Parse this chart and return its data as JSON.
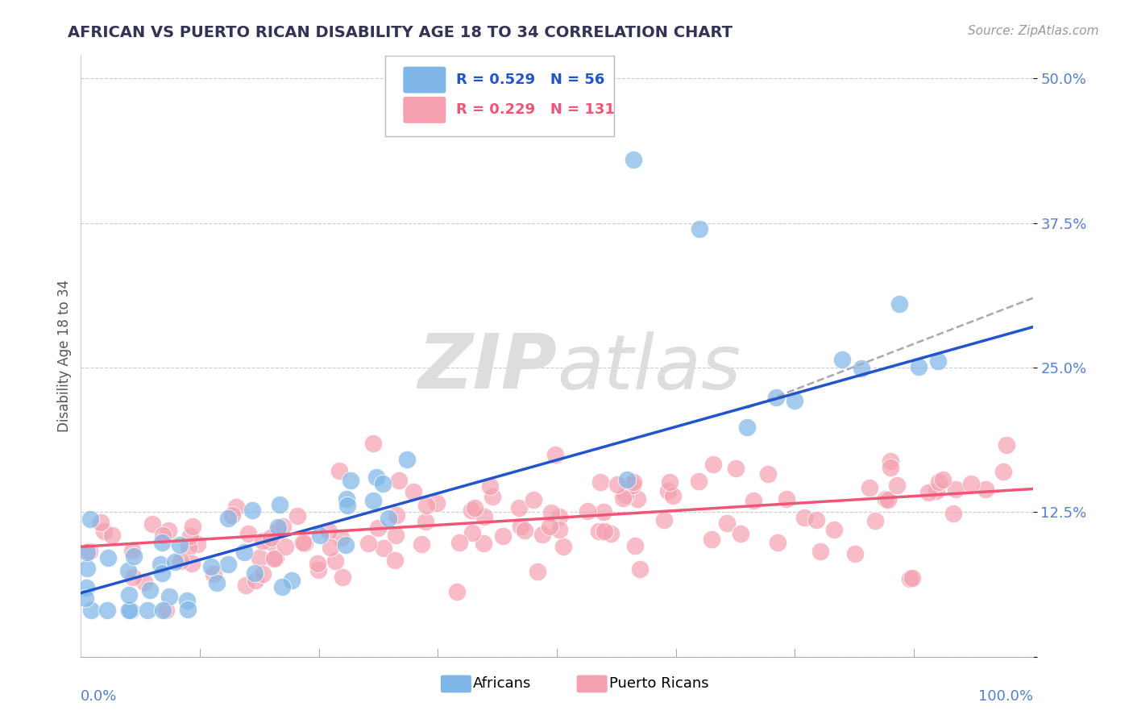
{
  "title": "AFRICAN VS PUERTO RICAN DISABILITY AGE 18 TO 34 CORRELATION CHART",
  "source": "Source: ZipAtlas.com",
  "ylabel": "Disability Age 18 to 34",
  "ytick_labels": [
    "",
    "12.5%",
    "25.0%",
    "37.5%",
    "50.0%"
  ],
  "ytick_vals": [
    0.0,
    0.125,
    0.25,
    0.375,
    0.5
  ],
  "legend_blue_r": "R = 0.529",
  "legend_blue_n": "N = 56",
  "legend_pink_r": "R = 0.229",
  "legend_pink_n": "N = 131",
  "blue_color": "#7EB6E8",
  "pink_color": "#F4A0B0",
  "blue_line_color": "#2255CC",
  "pink_line_color": "#EE5577",
  "title_color": "#333355",
  "source_color": "#999999",
  "background_color": "#FFFFFF",
  "blue_line_x0": 0.0,
  "blue_line_x1": 1.0,
  "blue_line_y0": 0.055,
  "blue_line_y1": 0.285,
  "pink_line_x0": 0.0,
  "pink_line_x1": 1.0,
  "pink_line_y0": 0.095,
  "pink_line_y1": 0.145,
  "dash_line_x0": 0.7,
  "dash_line_x1": 1.0,
  "dash_line_y0": 0.215,
  "dash_line_y1": 0.31,
  "xlim": [
    0.0,
    1.0
  ],
  "ylim": [
    0.0,
    0.52
  ]
}
